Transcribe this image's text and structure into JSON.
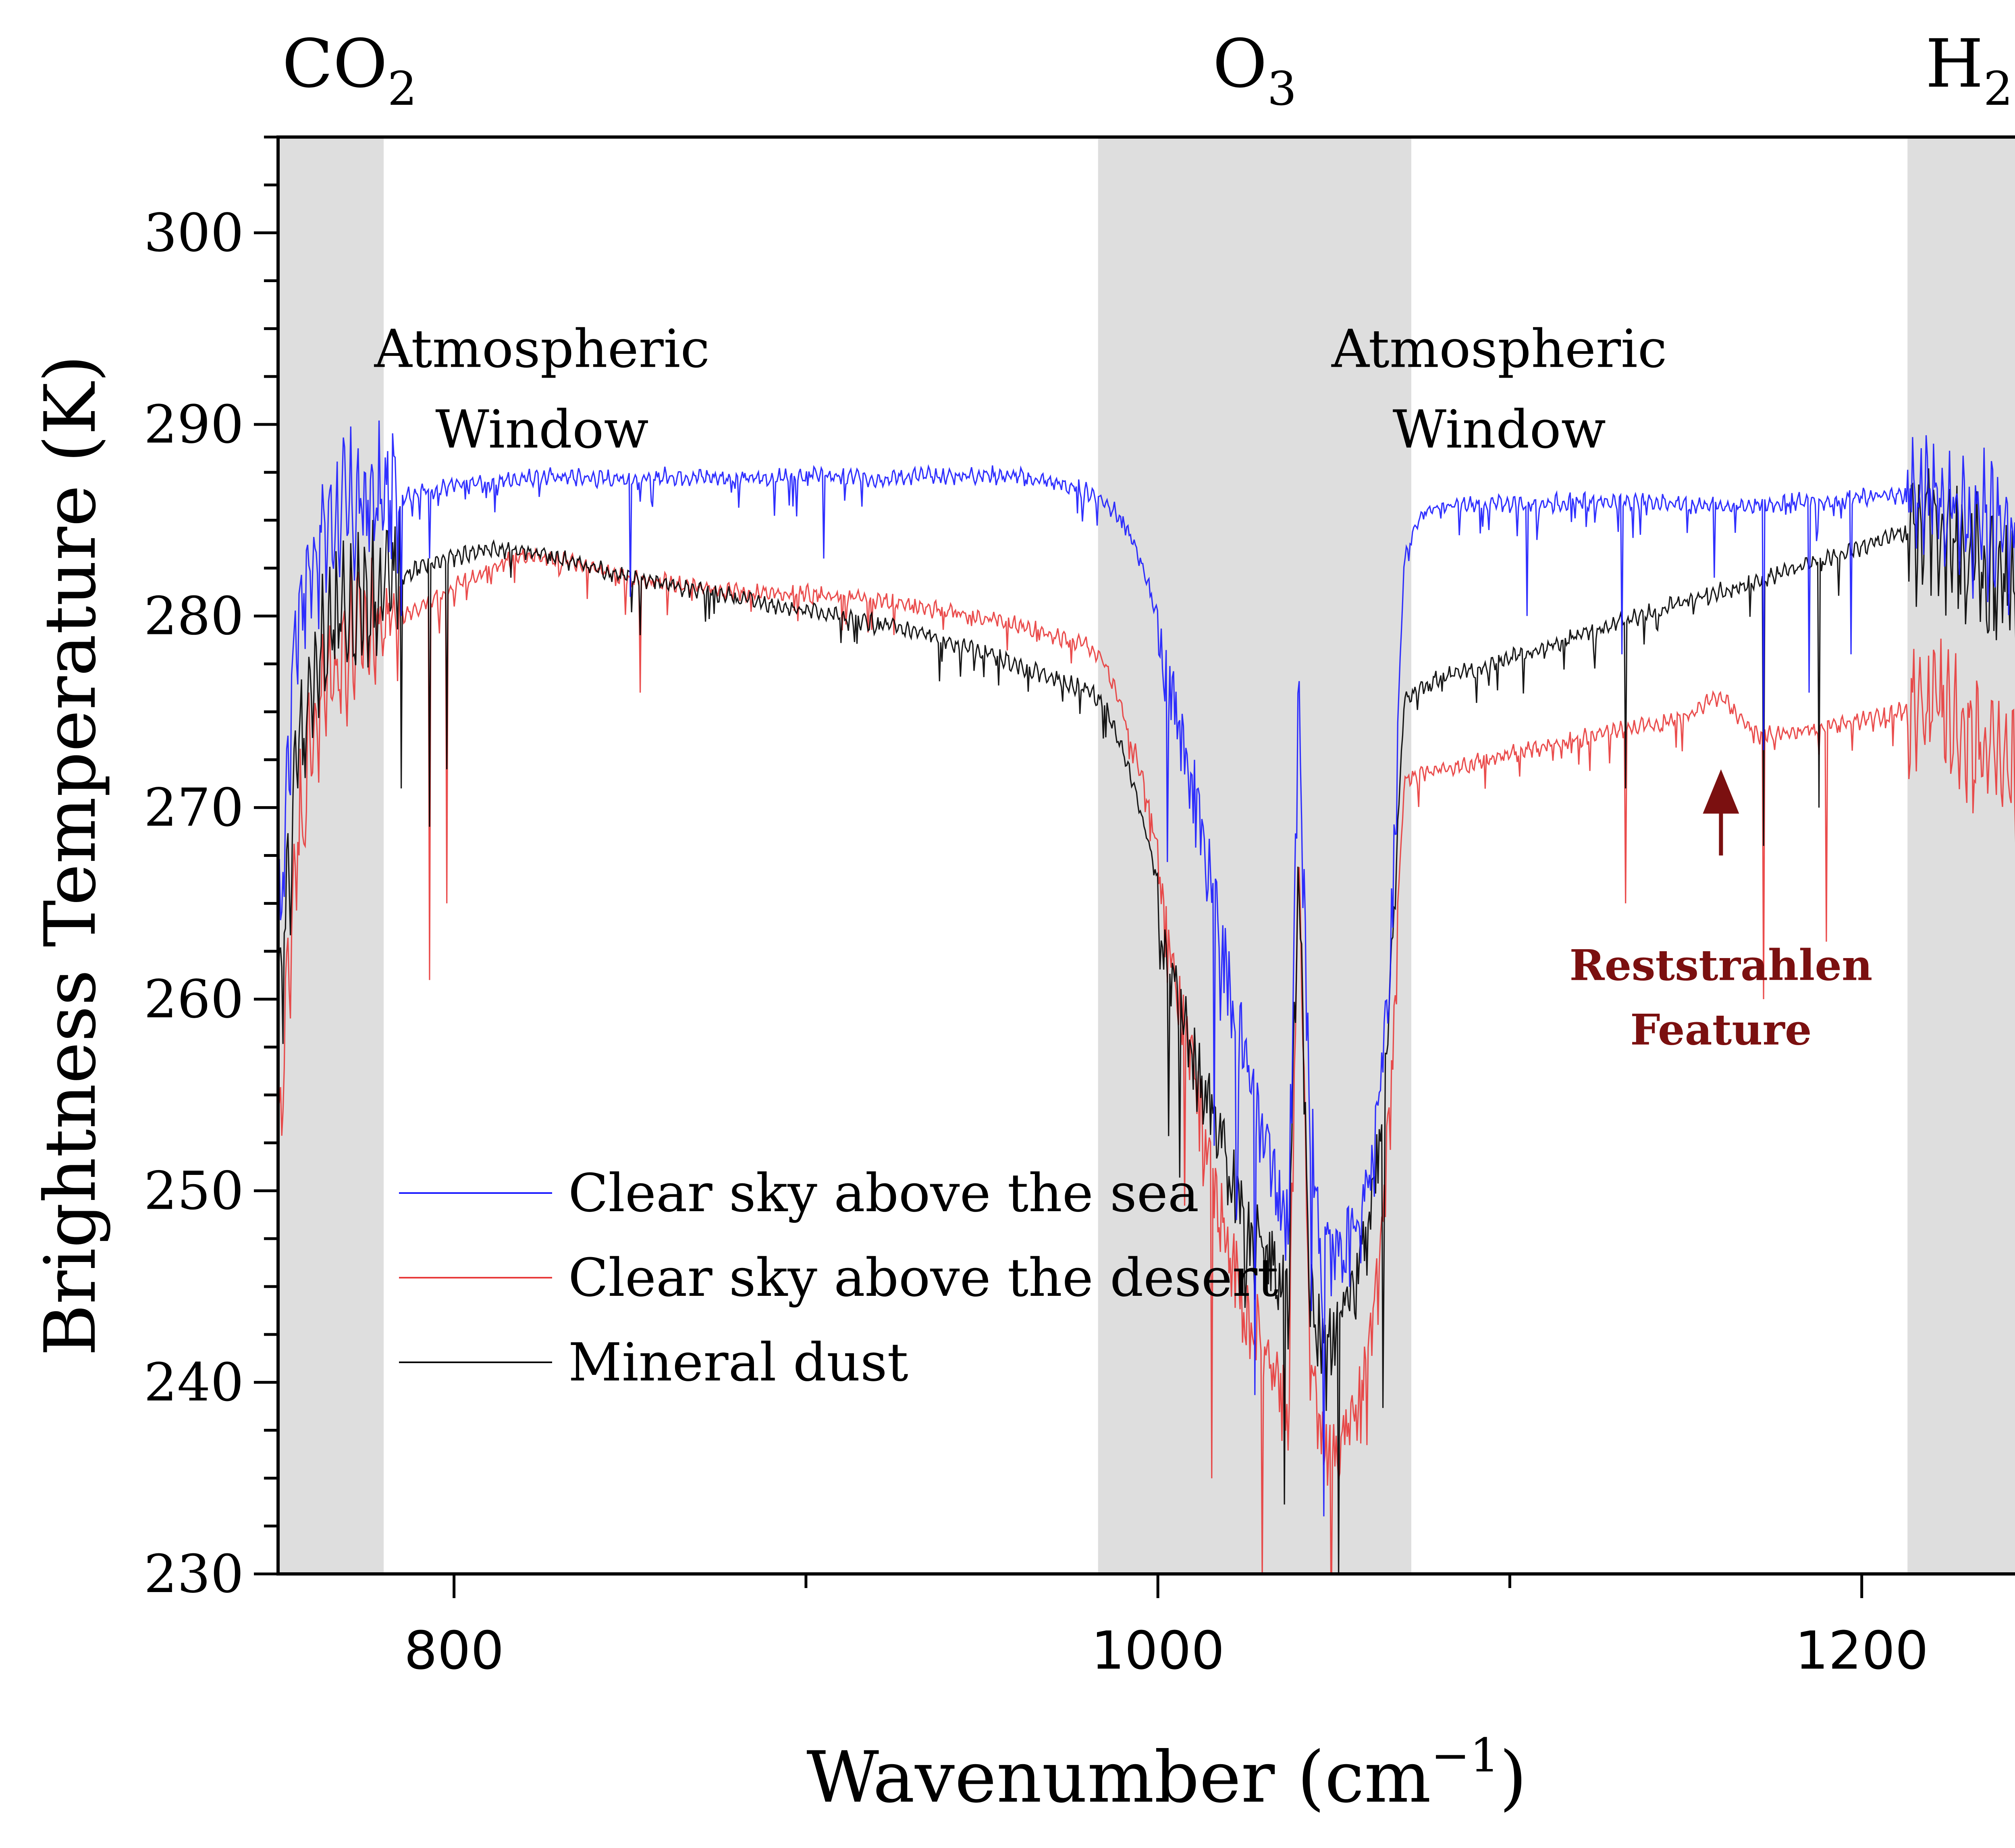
{
  "chart_data": {
    "type": "line",
    "xlabel": "Wavenumber (cm",
    "xlabel_sup": "−1",
    "xlabel_suffix": ")",
    "ylabel": "Brightness Temperature (K)",
    "xlim": [
      750,
      1255
    ],
    "ylim": [
      230,
      305
    ],
    "x_ticks": [
      800,
      1000,
      1200
    ],
    "y_ticks": [
      230,
      240,
      250,
      260,
      270,
      280,
      290,
      300
    ],
    "grid": false,
    "legend_position": "lower-left",
    "shaded_bands": [
      {
        "label": "CO",
        "sub": "2",
        "suffix": "",
        "x_range": [
          750,
          780
        ]
      },
      {
        "label": "O",
        "sub": "3",
        "suffix": "",
        "x_range": [
          983,
          1072
        ]
      },
      {
        "label": "H",
        "sub": "2",
        "suffix": "O",
        "x_range": [
          1213,
          1255
        ]
      }
    ],
    "annotations": [
      {
        "text": [
          "Atmospheric",
          "Window"
        ],
        "x": 825,
        "y": 293
      },
      {
        "text": [
          "Atmospheric",
          "Window"
        ],
        "x": 1097,
        "y": 293
      },
      {
        "text": [
          "Reststrahlen",
          "Feature"
        ],
        "x": 1160,
        "y": 261,
        "color": "#7b1010",
        "arrow_from": [
          1160,
          267.5
        ],
        "arrow_to": [
          1160,
          272
        ]
      }
    ],
    "series": [
      {
        "name": "Clear sky above the sea",
        "color": "#1a1aff",
        "x": [
          750,
          755,
          760,
          765,
          770,
          775,
          780,
          785,
          790,
          800,
          810,
          820,
          830,
          840,
          850,
          860,
          870,
          880,
          890,
          900,
          910,
          920,
          930,
          940,
          950,
          960,
          970,
          980,
          985,
          990,
          995,
          1000,
          1005,
          1010,
          1015,
          1020,
          1025,
          1030,
          1034,
          1037,
          1040,
          1043,
          1046,
          1050,
          1053,
          1056,
          1060,
          1063,
          1066,
          1070,
          1075,
          1080,
          1090,
          1100,
          1110,
          1120,
          1130,
          1140,
          1150,
          1160,
          1170,
          1180,
          1190,
          1200,
          1210,
          1220,
          1230,
          1240,
          1250,
          1255
        ],
        "y": [
          262,
          280,
          283,
          285,
          285.5,
          285.8,
          286,
          286.3,
          286.5,
          286.8,
          287,
          287.2,
          287.3,
          287.2,
          287.2,
          287.3,
          287.3,
          287.2,
          287.2,
          287.4,
          287.3,
          287.2,
          287.3,
          287.3,
          287.4,
          287.3,
          287,
          286.5,
          286,
          285,
          283,
          280,
          277,
          273,
          268,
          263,
          259,
          255,
          252,
          250,
          278,
          257,
          249,
          248,
          249,
          249.5,
          252,
          256,
          264,
          283,
          285.5,
          285.7,
          285.8,
          285.9,
          285.9,
          286,
          286,
          286,
          285.9,
          285.8,
          285.8,
          286,
          286,
          286.2,
          286.3,
          286.4,
          285,
          284,
          283,
          282
        ],
        "dips": [
          [
            785,
            280
          ],
          [
            793,
            283
          ],
          [
            850,
            281
          ],
          [
            905,
            283
          ],
          [
            1105,
            280
          ],
          [
            1132,
            278
          ],
          [
            1158,
            282
          ],
          [
            1172,
            273
          ],
          [
            1185,
            276
          ],
          [
            1197,
            278
          ]
        ]
      },
      {
        "name": "Clear sky above the desert",
        "color": "#e83a3a",
        "x": [
          750,
          755,
          760,
          765,
          770,
          775,
          780,
          785,
          790,
          800,
          810,
          820,
          830,
          840,
          850,
          860,
          870,
          880,
          890,
          900,
          910,
          920,
          930,
          940,
          950,
          960,
          970,
          980,
          985,
          990,
          995,
          1000,
          1005,
          1010,
          1015,
          1020,
          1025,
          1030,
          1034,
          1037,
          1040,
          1043,
          1046,
          1050,
          1053,
          1056,
          1060,
          1063,
          1066,
          1070,
          1075,
          1080,
          1090,
          1100,
          1110,
          1120,
          1130,
          1140,
          1150,
          1155,
          1160,
          1165,
          1170,
          1180,
          1190,
          1200,
          1210,
          1220,
          1230,
          1240,
          1250,
          1255
        ],
        "y": [
          252,
          268,
          274,
          277,
          278.5,
          279.2,
          279.6,
          280,
          280.5,
          281.5,
          282.5,
          283.2,
          283,
          282.5,
          282,
          281.8,
          281.5,
          281.3,
          281.2,
          281.2,
          281,
          280.8,
          280.6,
          280.3,
          280,
          279.5,
          279,
          278.5,
          277.5,
          275,
          272,
          268,
          263,
          258,
          253,
          249,
          246,
          244,
          242,
          240,
          270,
          244,
          239,
          238,
          239,
          240,
          243,
          248,
          257,
          271.5,
          271.8,
          272,
          272.4,
          272.8,
          273.2,
          273.6,
          274,
          274.3,
          274.8,
          275.4,
          275.8,
          274.8,
          273.8,
          273.9,
          274.2,
          274.6,
          275,
          275,
          274,
          272,
          270,
          268
        ],
        "dips": [
          [
            793,
            261
          ],
          [
            798,
            265
          ],
          [
            853,
            276
          ],
          [
            1133,
            265
          ],
          [
            1172,
            260
          ],
          [
            1190,
            263
          ]
        ]
      },
      {
        "name": "Mineral dust",
        "color": "#000000",
        "x": [
          750,
          755,
          760,
          765,
          770,
          775,
          780,
          785,
          790,
          800,
          810,
          820,
          830,
          840,
          850,
          860,
          870,
          880,
          890,
          900,
          910,
          920,
          930,
          940,
          950,
          960,
          970,
          980,
          985,
          990,
          995,
          1000,
          1005,
          1010,
          1015,
          1020,
          1025,
          1030,
          1034,
          1037,
          1040,
          1043,
          1046,
          1050,
          1053,
          1056,
          1060,
          1063,
          1066,
          1070,
          1075,
          1080,
          1090,
          1100,
          1110,
          1120,
          1130,
          1140,
          1150,
          1160,
          1170,
          1180,
          1190,
          1200,
          1210,
          1220,
          1230,
          1240,
          1250,
          1255
        ],
        "y": [
          258,
          272,
          277,
          279,
          280.2,
          281,
          281.6,
          282,
          282.5,
          283.1,
          283.5,
          283.4,
          283,
          282.5,
          282,
          281.7,
          281.3,
          281,
          280.6,
          280.3,
          280,
          279.6,
          279.2,
          278.7,
          278.2,
          277.5,
          276.8,
          276.2,
          275.3,
          273,
          270,
          266,
          262,
          259,
          256,
          253,
          251,
          249,
          247.5,
          246,
          270,
          247,
          245,
          244.5,
          245.5,
          246.5,
          250,
          255,
          262,
          275.5,
          276.3,
          276.8,
          277.2,
          277.8,
          278.4,
          279,
          279.6,
          280.2,
          280.8,
          281.3,
          281.8,
          282.4,
          283,
          283.6,
          284.3,
          284.8,
          283,
          281.5,
          280,
          279
        ],
        "dips": [
          [
            785,
            271
          ],
          [
            793,
            269
          ],
          [
            798,
            272
          ],
          [
            853,
            279
          ],
          [
            1133,
            271
          ],
          [
            1172,
            268
          ],
          [
            1188,
            270
          ]
        ]
      }
    ]
  }
}
